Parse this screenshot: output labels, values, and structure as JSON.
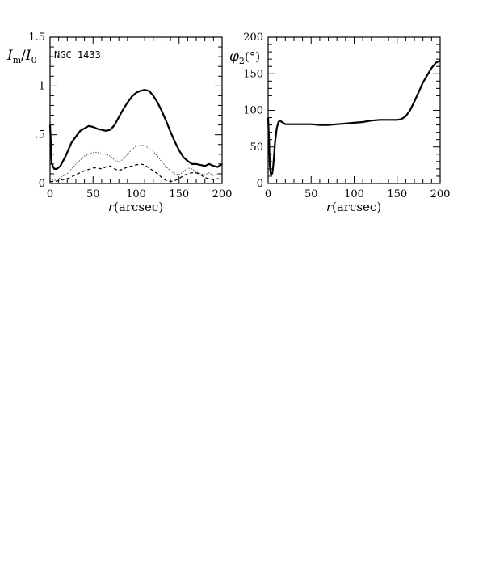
{
  "chart_data": [
    {
      "type": "line",
      "title": "",
      "xlabel": "r(arcsec)",
      "ylabel": "I_m/I_0",
      "ylabel_main": "I",
      "ylabel_sub_m": "m",
      "ylabel_slash": "/",
      "ylabel_sub_0": "0",
      "annotation": "NGC 1433",
      "xlim": [
        0,
        200
      ],
      "ylim": [
        0,
        1.5
      ],
      "xticks": [
        0,
        50,
        100,
        150,
        200
      ],
      "xtick_labels": [
        "0",
        "50",
        "100",
        "150",
        "200"
      ],
      "yticks": [
        0,
        0.5,
        1,
        1.5
      ],
      "ytick_labels": [
        "0",
        ".5",
        "1",
        "1.5"
      ],
      "grid": false,
      "series": [
        {
          "style": "solid-thick",
          "x": [
            0,
            2,
            5,
            8,
            12,
            18,
            25,
            35,
            45,
            50,
            55,
            60,
            65,
            70,
            75,
            80,
            85,
            90,
            95,
            100,
            105,
            110,
            115,
            120,
            125,
            130,
            135,
            140,
            145,
            150,
            155,
            160,
            165,
            170,
            175,
            180,
            185,
            190,
            195,
            200
          ],
          "y": [
            0.6,
            0.2,
            0.15,
            0.15,
            0.18,
            0.28,
            0.42,
            0.54,
            0.59,
            0.58,
            0.56,
            0.55,
            0.54,
            0.55,
            0.6,
            0.68,
            0.76,
            0.83,
            0.89,
            0.93,
            0.95,
            0.96,
            0.95,
            0.9,
            0.83,
            0.74,
            0.64,
            0.53,
            0.43,
            0.34,
            0.27,
            0.23,
            0.2,
            0.2,
            0.19,
            0.18,
            0.2,
            0.18,
            0.17,
            0.2
          ]
        },
        {
          "style": "dotted",
          "x": [
            0,
            5,
            10,
            20,
            30,
            40,
            50,
            55,
            60,
            65,
            70,
            75,
            80,
            85,
            90,
            95,
            100,
            105,
            110,
            115,
            120,
            125,
            130,
            135,
            140,
            145,
            150,
            155,
            160,
            165,
            170,
            175,
            180,
            185,
            190,
            195,
            200
          ],
          "y": [
            0.05,
            0.03,
            0.05,
            0.1,
            0.2,
            0.28,
            0.32,
            0.32,
            0.3,
            0.3,
            0.28,
            0.24,
            0.22,
            0.25,
            0.3,
            0.35,
            0.38,
            0.39,
            0.39,
            0.36,
            0.33,
            0.28,
            0.22,
            0.17,
            0.13,
            0.1,
            0.09,
            0.12,
            0.16,
            0.15,
            0.12,
            0.1,
            0.09,
            0.11,
            0.08,
            0.1,
            0.09
          ]
        },
        {
          "style": "dashed",
          "x": [
            0,
            5,
            10,
            20,
            30,
            40,
            50,
            55,
            60,
            65,
            70,
            75,
            80,
            85,
            90,
            95,
            100,
            105,
            110,
            115,
            120,
            125,
            130,
            135,
            140,
            145,
            150,
            155,
            160,
            165,
            170,
            175,
            180,
            185,
            190,
            195,
            200
          ],
          "y": [
            0.02,
            0.02,
            0.03,
            0.05,
            0.09,
            0.13,
            0.16,
            0.16,
            0.15,
            0.17,
            0.18,
            0.15,
            0.13,
            0.15,
            0.17,
            0.18,
            0.19,
            0.2,
            0.19,
            0.16,
            0.13,
            0.1,
            0.06,
            0.03,
            0.02,
            0.03,
            0.05,
            0.08,
            0.1,
            0.11,
            0.11,
            0.09,
            0.06,
            0.05,
            0.04,
            0.05,
            0.03
          ]
        }
      ]
    },
    {
      "type": "line",
      "title": "",
      "xlabel": "r(arcsec)",
      "ylabel": "φ2(°)",
      "ylabel_main": "φ",
      "ylabel_sub": "2",
      "ylabel_unit": "(°)",
      "xlim": [
        0,
        200
      ],
      "ylim": [
        0,
        200
      ],
      "xticks": [
        0,
        50,
        100,
        150,
        200
      ],
      "xtick_labels": [
        "0",
        "50",
        "100",
        "150",
        "200"
      ],
      "yticks": [
        0,
        50,
        100,
        150,
        200
      ],
      "ytick_labels": [
        "0",
        "50",
        "100",
        "150",
        "200"
      ],
      "grid": false,
      "series": [
        {
          "style": "solid-thick",
          "x": [
            0,
            1,
            2,
            3,
            4,
            5,
            6,
            8,
            10,
            12,
            14,
            16,
            20,
            30,
            40,
            50,
            60,
            70,
            80,
            90,
            100,
            110,
            120,
            130,
            140,
            150,
            155,
            160,
            165,
            170,
            175,
            180,
            185,
            190,
            195,
            200
          ],
          "y": [
            90,
            60,
            25,
            13,
            12,
            15,
            25,
            55,
            75,
            84,
            86,
            84,
            81,
            81,
            81,
            81,
            80,
            80,
            81,
            82,
            83,
            84,
            86,
            87,
            87,
            87,
            88,
            92,
            100,
            112,
            125,
            138,
            148,
            158,
            165,
            168
          ]
        }
      ]
    }
  ]
}
